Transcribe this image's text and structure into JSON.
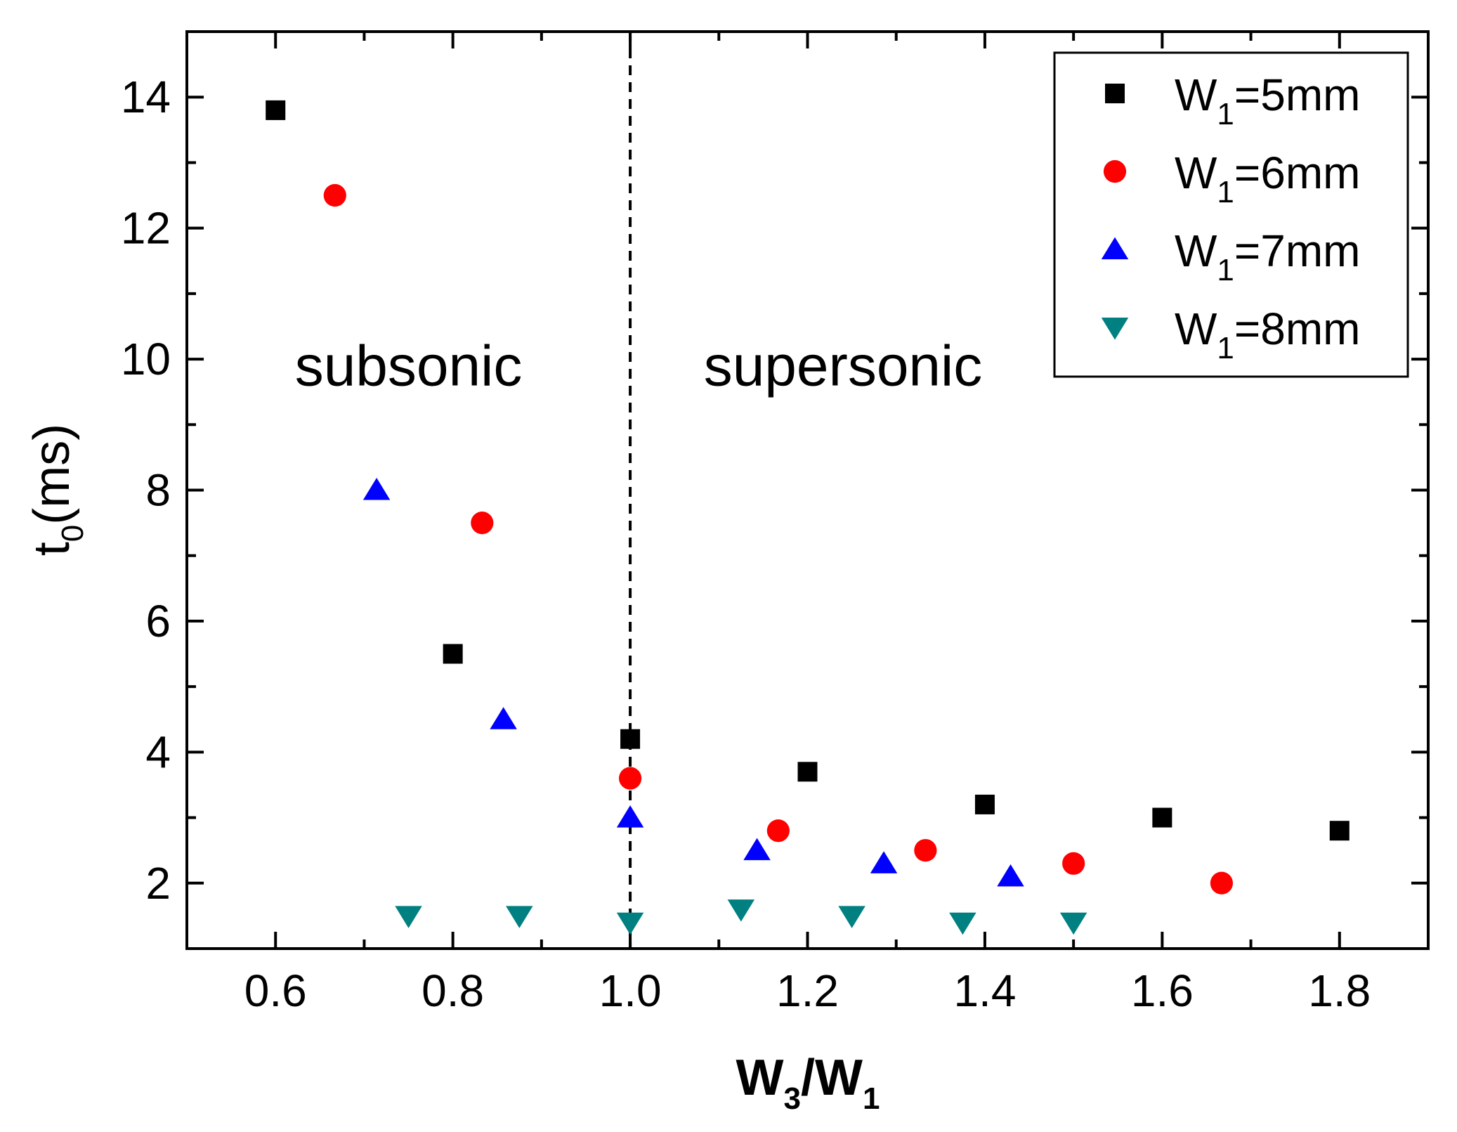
{
  "chart_data": {
    "type": "scatter",
    "title": "",
    "xlabel": {
      "main": "W",
      "sub": "3",
      "mid": "/W",
      "sub2": "1"
    },
    "ylabel": {
      "main": "t",
      "sub": "0",
      "rest": "(ms)"
    },
    "xlim": [
      0.5,
      1.9
    ],
    "ylim": [
      1.0,
      15.0
    ],
    "x_ticks": [
      "0.6",
      "0.8",
      "1.0",
      "1.2",
      "1.4",
      "1.6",
      "1.8"
    ],
    "y_ticks": [
      "2",
      "4",
      "6",
      "8",
      "10",
      "12",
      "14"
    ],
    "x_tick_values": [
      0.6,
      0.8,
      1.0,
      1.2,
      1.4,
      1.6,
      1.8
    ],
    "y_tick_values": [
      2,
      4,
      6,
      8,
      10,
      12,
      14
    ],
    "vline_x": 1.0,
    "annotations": [
      {
        "text": "subsonic",
        "x": 0.75,
        "y": 9.6
      },
      {
        "text": "supersonic",
        "x": 1.24,
        "y": 9.6
      }
    ],
    "legend_position": "top-right",
    "series": [
      {
        "label_main": "W",
        "label_sub": "1",
        "label_rest": "=5mm",
        "marker": "square",
        "color": "#000000",
        "x": [
          0.6,
          0.8,
          1.0,
          1.2,
          1.4,
          1.6,
          1.8
        ],
        "y": [
          13.8,
          5.5,
          4.2,
          3.7,
          3.2,
          3.0,
          2.8
        ]
      },
      {
        "label_main": "W",
        "label_sub": "1",
        "label_rest": "=6mm",
        "marker": "circle",
        "color": "#ff0000",
        "x": [
          0.667,
          0.833,
          1.0,
          1.167,
          1.333,
          1.5,
          1.667
        ],
        "y": [
          12.5,
          7.5,
          3.6,
          2.8,
          2.5,
          2.3,
          2.0
        ]
      },
      {
        "label_main": "W",
        "label_sub": "1",
        "label_rest": "=7mm",
        "marker": "triangle-up",
        "color": "#0000ff",
        "x": [
          0.714,
          0.857,
          1.0,
          1.143,
          1.286,
          1.429
        ],
        "y": [
          8.0,
          4.5,
          3.0,
          2.5,
          2.3,
          2.1
        ]
      },
      {
        "label_main": "W",
        "label_sub": "1",
        "label_rest": "=8mm",
        "marker": "triangle-down",
        "color": "#008080",
        "x": [
          0.75,
          0.875,
          1.0,
          1.125,
          1.25,
          1.375,
          1.5
        ],
        "y": [
          1.5,
          1.5,
          1.4,
          1.6,
          1.5,
          1.4,
          1.4
        ]
      }
    ]
  }
}
